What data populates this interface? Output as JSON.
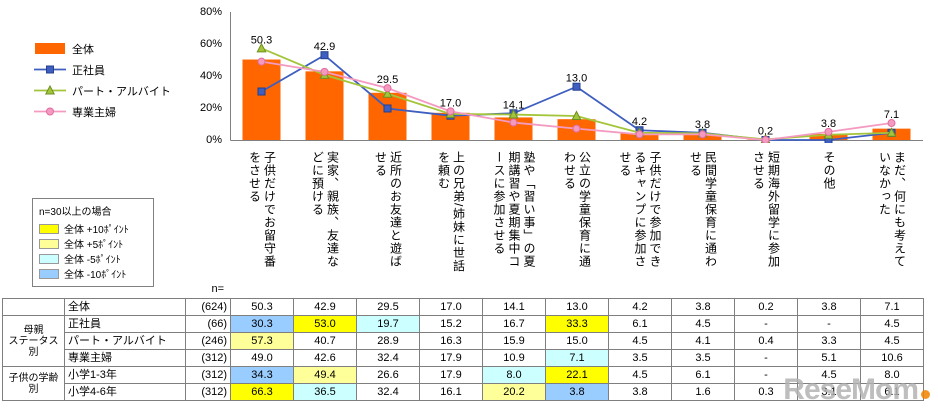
{
  "chart_data": {
    "type": "bar",
    "title": "",
    "ylim": [
      0,
      80
    ],
    "y_ticks": [
      "80%",
      "60%",
      "40%",
      "20%",
      "0%"
    ],
    "legend_position": "left",
    "grid": false,
    "categories": [
      "子供だけでお留守番をさせる",
      "実家、親族、友達などに預ける",
      "近所のお友達と遊ばせる",
      "上の兄弟/姉妹に世話を頼む",
      "塾や「習い事」の夏期講習や夏期集中コースに参加させる",
      "公立の学童保育に通わせる",
      "子供だけで参加できるキャンプに参加させる",
      "民間学童保育に通わせる",
      "短期海外留学に参加させる",
      "その他",
      "まだ、何にも考えていなかった"
    ],
    "series": [
      {
        "name": "全体",
        "type": "bar",
        "color": "#FF6600",
        "values": [
          50.3,
          42.9,
          29.5,
          17.0,
          14.1,
          13.0,
          4.2,
          3.8,
          0.2,
          3.8,
          7.1
        ]
      },
      {
        "name": "正社員",
        "type": "line",
        "marker": "square",
        "color": "#3E5EC0",
        "marker_border": "#24408E",
        "values": [
          30.3,
          53.0,
          19.7,
          15.2,
          16.7,
          33.3,
          6.1,
          4.5,
          0,
          0,
          4.5
        ]
      },
      {
        "name": "パート・アルバイト",
        "type": "line",
        "marker": "triangle",
        "color": "#A3C53A",
        "marker_border": "#6E8F1F",
        "values": [
          57.3,
          40.7,
          28.9,
          16.3,
          15.9,
          15.0,
          4.5,
          4.1,
          0.4,
          3.3,
          4.5
        ]
      },
      {
        "name": "専業主婦",
        "type": "line",
        "marker": "circle",
        "color": "#F49AC1",
        "marker_border": "#E06C9F",
        "values": [
          49.0,
          42.6,
          32.4,
          17.9,
          10.9,
          7.1,
          3.5,
          3.5,
          0,
          5.1,
          10.6
        ]
      }
    ]
  },
  "highlight_colors": {
    "y10": "#FFFF00",
    "y5": "#FFFF99",
    "b5": "#CCFFFF",
    "b10": "#99CCFF"
  },
  "highlight_legend": {
    "title": "n=30以上の場合",
    "items": [
      {
        "label": "全体 +10ﾎﾟｲﾝﾄ",
        "key": "y10"
      },
      {
        "label": "全体 +5ﾎﾟｲﾝﾄ",
        "key": "y5"
      },
      {
        "label": "全体 -5ﾎﾟｲﾝﾄ",
        "key": "b5"
      },
      {
        "label": "全体 -10ﾎﾟｲﾝﾄ",
        "key": "b10"
      }
    ]
  },
  "table": {
    "n_label": "n=",
    "rows": [
      {
        "group": "",
        "group_span": 1,
        "label": "全体",
        "n": "(624)",
        "values": [
          "50.3",
          "42.9",
          "29.5",
          "17.0",
          "14.1",
          "13.0",
          "4.2",
          "3.8",
          "0.2",
          "3.8",
          "7.1"
        ],
        "hl": [
          "",
          "",
          "",
          "",
          "",
          "",
          "",
          "",
          "",
          "",
          ""
        ]
      },
      {
        "group": "母親\nステータス別",
        "group_span": 3,
        "label": "正社員",
        "n": "(66)",
        "values": [
          "30.3",
          "53.0",
          "19.7",
          "15.2",
          "16.7",
          "33.3",
          "6.1",
          "4.5",
          "-",
          "-",
          "4.5"
        ],
        "hl": [
          "b10",
          "y10",
          "b5",
          "",
          "",
          "y10",
          "",
          "",
          "",
          "",
          ""
        ]
      },
      {
        "label": "パート・アルバイト",
        "n": "(246)",
        "values": [
          "57.3",
          "40.7",
          "28.9",
          "16.3",
          "15.9",
          "15.0",
          "4.5",
          "4.1",
          "0.4",
          "3.3",
          "4.5"
        ],
        "hl": [
          "y5",
          "",
          "",
          "",
          "",
          "",
          "",
          "",
          "",
          "",
          ""
        ]
      },
      {
        "label": "専業主婦",
        "n": "(312)",
        "values": [
          "49.0",
          "42.6",
          "32.4",
          "17.9",
          "10.9",
          "7.1",
          "3.5",
          "3.5",
          "-",
          "5.1",
          "10.6"
        ],
        "hl": [
          "",
          "",
          "",
          "",
          "",
          "b5",
          "",
          "",
          "",
          "",
          ""
        ]
      },
      {
        "group": "子供の学齢\n別",
        "group_span": 2,
        "label": "小学1-3年",
        "n": "(312)",
        "values": [
          "34.3",
          "49.4",
          "26.6",
          "17.9",
          "8.0",
          "22.1",
          "4.5",
          "6.1",
          "-",
          "4.5",
          "8.0"
        ],
        "hl": [
          "b10",
          "y5",
          "",
          "",
          "b5",
          "y10",
          "",
          "",
          "",
          "",
          ""
        ]
      },
      {
        "label": "小学4-6年",
        "n": "(312)",
        "values": [
          "66.3",
          "36.5",
          "32.4",
          "16.1",
          "20.2",
          "3.8",
          "3.8",
          "1.6",
          "0.3",
          "3.1",
          "6.1"
        ],
        "hl": [
          "y10",
          "b5",
          "",
          "",
          "y5",
          "b10",
          "",
          "",
          "",
          "",
          ""
        ]
      }
    ]
  },
  "watermark": {
    "text": "ReseMom"
  }
}
